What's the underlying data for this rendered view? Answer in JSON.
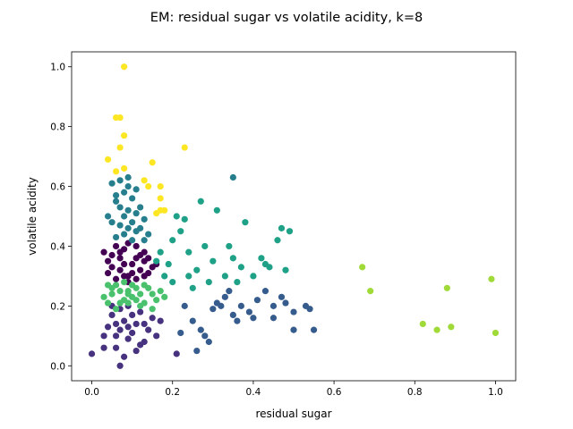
{
  "chart_data": {
    "type": "scatter",
    "title": "EM: residual sugar vs volatile acidity, k=8",
    "xlabel": "residual sugar",
    "ylabel": "volatile acidity",
    "xlim": [
      -0.05,
      1.05
    ],
    "ylim": [
      -0.05,
      1.05
    ],
    "xticks": [
      0.0,
      0.2,
      0.4,
      0.6,
      0.8,
      1.0
    ],
    "xtick_labels": [
      "0.0",
      "0.2",
      "0.4",
      "0.6",
      "0.8",
      "1.0"
    ],
    "yticks": [
      0.0,
      0.2,
      0.4,
      0.6,
      0.8,
      1.0
    ],
    "ytick_labels": [
      "0.0",
      "0.2",
      "0.4",
      "0.6",
      "0.8",
      "1.0"
    ],
    "grid": false,
    "legend": "none",
    "colormap": "viridis",
    "cluster_colors": [
      "#440154",
      "#46327e",
      "#365c8d",
      "#277f8e",
      "#1fa187",
      "#4ac16d",
      "#a0da39",
      "#fde725"
    ],
    "series": [
      {
        "cluster": 0,
        "points": [
          [
            0.03,
            0.38
          ],
          [
            0.05,
            0.33
          ],
          [
            0.07,
            0.36
          ],
          [
            0.09,
            0.3
          ],
          [
            0.11,
            0.4
          ],
          [
            0.13,
            0.35
          ],
          [
            0.14,
            0.31
          ],
          [
            0.06,
            0.29
          ],
          [
            0.08,
            0.39
          ],
          [
            0.1,
            0.34
          ],
          [
            0.12,
            0.37
          ],
          [
            0.04,
            0.35
          ],
          [
            0.15,
            0.33
          ],
          [
            0.09,
            0.41
          ],
          [
            0.07,
            0.32
          ],
          [
            0.11,
            0.29
          ],
          [
            0.13,
            0.38
          ],
          [
            0.05,
            0.37
          ],
          [
            0.1,
            0.31
          ],
          [
            0.08,
            0.34
          ],
          [
            0.12,
            0.32
          ],
          [
            0.06,
            0.4
          ],
          [
            0.14,
            0.36
          ],
          [
            0.09,
            0.28
          ],
          [
            0.04,
            0.31
          ],
          [
            0.16,
            0.34
          ],
          [
            0.11,
            0.36
          ],
          [
            0.07,
            0.38
          ],
          [
            0.13,
            0.3
          ],
          [
            0.08,
            0.3
          ]
        ]
      },
      {
        "cluster": 1,
        "points": [
          [
            0.0,
            0.04
          ],
          [
            0.03,
            0.1
          ],
          [
            0.05,
            0.17
          ],
          [
            0.07,
            0.12
          ],
          [
            0.09,
            0.2
          ],
          [
            0.11,
            0.14
          ],
          [
            0.13,
            0.08
          ],
          [
            0.06,
            0.06
          ],
          [
            0.08,
            0.15
          ],
          [
            0.1,
            0.11
          ],
          [
            0.12,
            0.18
          ],
          [
            0.04,
            0.13
          ],
          [
            0.15,
            0.16
          ],
          [
            0.09,
            0.09
          ],
          [
            0.07,
            0.19
          ],
          [
            0.14,
            0.12
          ],
          [
            0.16,
            0.1
          ],
          [
            0.06,
            0.14
          ],
          [
            0.11,
            0.05
          ],
          [
            0.08,
            0.03
          ],
          [
            0.07,
            0.0
          ],
          [
            0.05,
            0.2
          ],
          [
            0.12,
            0.07
          ],
          [
            0.17,
            0.15
          ],
          [
            0.1,
            0.17
          ],
          [
            0.03,
            0.06
          ],
          [
            0.13,
            0.14
          ],
          [
            0.09,
            0.13
          ],
          [
            0.21,
            0.04
          ],
          [
            0.06,
            0.1
          ]
        ]
      },
      {
        "cluster": 2,
        "points": [
          [
            0.23,
            0.2
          ],
          [
            0.25,
            0.15
          ],
          [
            0.27,
            0.12
          ],
          [
            0.29,
            0.08
          ],
          [
            0.31,
            0.21
          ],
          [
            0.33,
            0.23
          ],
          [
            0.35,
            0.17
          ],
          [
            0.37,
            0.2
          ],
          [
            0.39,
            0.18
          ],
          [
            0.41,
            0.22
          ],
          [
            0.43,
            0.25
          ],
          [
            0.45,
            0.16
          ],
          [
            0.48,
            0.21
          ],
          [
            0.5,
            0.18
          ],
          [
            0.53,
            0.2
          ],
          [
            0.55,
            0.12
          ],
          [
            0.5,
            0.12
          ],
          [
            0.32,
            0.2
          ],
          [
            0.36,
            0.15
          ],
          [
            0.26,
            0.05
          ],
          [
            0.22,
            0.11
          ],
          [
            0.28,
            0.1
          ],
          [
            0.47,
            0.23
          ],
          [
            0.54,
            0.19
          ],
          [
            0.34,
            0.25
          ],
          [
            0.4,
            0.16
          ],
          [
            0.3,
            0.19
          ],
          [
            0.45,
            0.2
          ]
        ]
      },
      {
        "cluster": 3,
        "points": [
          [
            0.04,
            0.5
          ],
          [
            0.06,
            0.55
          ],
          [
            0.07,
            0.62
          ],
          [
            0.08,
            0.58
          ],
          [
            0.09,
            0.52
          ],
          [
            0.1,
            0.48
          ],
          [
            0.11,
            0.45
          ],
          [
            0.12,
            0.53
          ],
          [
            0.09,
            0.6
          ],
          [
            0.07,
            0.47
          ],
          [
            0.08,
            0.44
          ],
          [
            0.1,
            0.56
          ],
          [
            0.13,
            0.49
          ],
          [
            0.06,
            0.43
          ],
          [
            0.11,
            0.59
          ],
          [
            0.09,
            0.63
          ],
          [
            0.05,
            0.61
          ],
          [
            0.12,
            0.46
          ],
          [
            0.14,
            0.44
          ],
          [
            0.08,
            0.5
          ],
          [
            0.1,
            0.42
          ],
          [
            0.07,
            0.53
          ],
          [
            0.13,
            0.42
          ],
          [
            0.05,
            0.48
          ],
          [
            0.11,
            0.51
          ],
          [
            0.09,
            0.46
          ],
          [
            0.35,
            0.63
          ],
          [
            0.06,
            0.57
          ]
        ]
      },
      {
        "cluster": 4,
        "points": [
          [
            0.17,
            0.38
          ],
          [
            0.19,
            0.34
          ],
          [
            0.2,
            0.28
          ],
          [
            0.22,
            0.45
          ],
          [
            0.23,
            0.49
          ],
          [
            0.24,
            0.38
          ],
          [
            0.26,
            0.32
          ],
          [
            0.27,
            0.55
          ],
          [
            0.28,
            0.4
          ],
          [
            0.3,
            0.35
          ],
          [
            0.31,
            0.52
          ],
          [
            0.33,
            0.3
          ],
          [
            0.35,
            0.36
          ],
          [
            0.37,
            0.33
          ],
          [
            0.38,
            0.48
          ],
          [
            0.4,
            0.3
          ],
          [
            0.42,
            0.36
          ],
          [
            0.44,
            0.33
          ],
          [
            0.46,
            0.42
          ],
          [
            0.47,
            0.46
          ],
          [
            0.48,
            0.32
          ],
          [
            0.49,
            0.45
          ],
          [
            0.21,
            0.5
          ],
          [
            0.25,
            0.26
          ],
          [
            0.18,
            0.3
          ],
          [
            0.29,
            0.28
          ],
          [
            0.34,
            0.4
          ],
          [
            0.43,
            0.34
          ],
          [
            0.2,
            0.42
          ],
          [
            0.24,
            0.3
          ],
          [
            0.16,
            0.35
          ],
          [
            0.36,
            0.28
          ]
        ]
      },
      {
        "cluster": 5,
        "points": [
          [
            0.03,
            0.23
          ],
          [
            0.05,
            0.26
          ],
          [
            0.07,
            0.21
          ],
          [
            0.09,
            0.25
          ],
          [
            0.11,
            0.22
          ],
          [
            0.13,
            0.27
          ],
          [
            0.15,
            0.24
          ],
          [
            0.06,
            0.19
          ],
          [
            0.08,
            0.28
          ],
          [
            0.1,
            0.23
          ],
          [
            0.12,
            0.2
          ],
          [
            0.04,
            0.21
          ],
          [
            0.14,
            0.26
          ],
          [
            0.09,
            0.21
          ],
          [
            0.07,
            0.25
          ],
          [
            0.16,
            0.22
          ],
          [
            0.11,
            0.26
          ],
          [
            0.05,
            0.24
          ],
          [
            0.13,
            0.21
          ],
          [
            0.17,
            0.25
          ],
          [
            0.08,
            0.22
          ],
          [
            0.1,
            0.27
          ],
          [
            0.12,
            0.24
          ],
          [
            0.06,
            0.27
          ],
          [
            0.15,
            0.19
          ],
          [
            0.18,
            0.23
          ],
          [
            0.09,
            0.24
          ],
          [
            0.04,
            0.27
          ]
        ]
      },
      {
        "cluster": 6,
        "points": [
          [
            0.67,
            0.33
          ],
          [
            0.69,
            0.25
          ],
          [
            0.82,
            0.14
          ],
          [
            0.855,
            0.12
          ],
          [
            0.88,
            0.26
          ],
          [
            0.89,
            0.13
          ],
          [
            0.99,
            0.29
          ],
          [
            1.0,
            0.11
          ]
        ]
      },
      {
        "cluster": 7,
        "points": [
          [
            0.08,
            1.0
          ],
          [
            0.06,
            0.83
          ],
          [
            0.07,
            0.83
          ],
          [
            0.08,
            0.77
          ],
          [
            0.07,
            0.73
          ],
          [
            0.23,
            0.73
          ],
          [
            0.04,
            0.69
          ],
          [
            0.15,
            0.68
          ],
          [
            0.08,
            0.66
          ],
          [
            0.06,
            0.65
          ],
          [
            0.13,
            0.62
          ],
          [
            0.14,
            0.6
          ],
          [
            0.17,
            0.6
          ],
          [
            0.17,
            0.56
          ],
          [
            0.18,
            0.52
          ],
          [
            0.16,
            0.51
          ],
          [
            0.17,
            0.52
          ]
        ]
      }
    ]
  }
}
